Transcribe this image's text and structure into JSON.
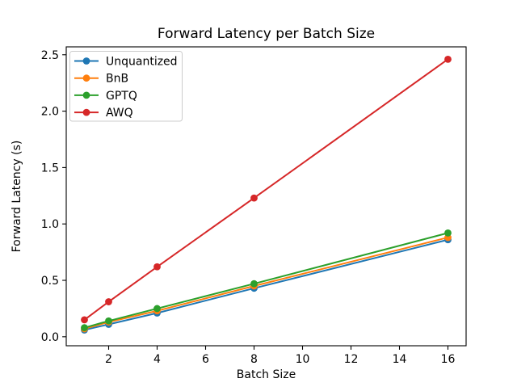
{
  "figure": {
    "background": "#ffffff"
  },
  "chart_data": {
    "type": "line",
    "title": "Forward Latency per Batch Size",
    "xlabel": "Batch Size",
    "ylabel": "Forward Latency (s)",
    "x": [
      1,
      2,
      4,
      8,
      16
    ],
    "series": [
      {
        "name": "Unquantized",
        "color": "#1f77b4",
        "values": [
          0.06,
          0.11,
          0.21,
          0.43,
          0.86
        ]
      },
      {
        "name": "BnB",
        "color": "#ff7f0e",
        "values": [
          0.07,
          0.13,
          0.23,
          0.45,
          0.88
        ]
      },
      {
        "name": "GPTQ",
        "color": "#2ca02c",
        "values": [
          0.08,
          0.14,
          0.25,
          0.47,
          0.92
        ]
      },
      {
        "name": "AWQ",
        "color": "#d62728",
        "values": [
          0.15,
          0.31,
          0.62,
          1.23,
          2.46
        ]
      }
    ],
    "xticks": [
      2,
      4,
      6,
      8,
      10,
      12,
      14,
      16
    ],
    "yticks": [
      0.0,
      0.5,
      1.0,
      1.5,
      2.0,
      2.5
    ],
    "xlim": [
      0.25,
      16.75
    ],
    "ylim": [
      -0.08,
      2.57
    ],
    "grid": false,
    "marker": "o",
    "legend_position": "upper left",
    "legend_labels": [
      "Unquantized",
      "BnB",
      "GPTQ",
      "AWQ"
    ],
    "axis_color": "#000000",
    "legend_border_color": "#cccccc",
    "legend_background": "#ffffff"
  }
}
